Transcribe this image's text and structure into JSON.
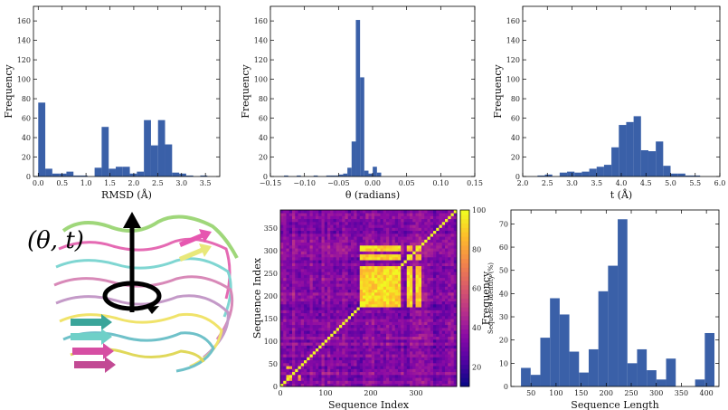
{
  "colors": {
    "bar": "#3a60a8"
  },
  "illustration": {
    "label": "(θ, t)",
    "description_icon": "protein-helix-icon"
  },
  "chart_data": [
    {
      "id": "rmsd",
      "type": "bar",
      "xlabel": "RMSD (Å)",
      "ylabel": "Frequency",
      "xlim": [
        -0.1,
        3.8
      ],
      "ylim": [
        0,
        175
      ],
      "xticks": [
        0.0,
        0.5,
        1.0,
        1.5,
        2.0,
        2.5,
        3.0,
        3.5
      ],
      "xtick_labels": [
        "0.0",
        "0.5",
        "1.0",
        "1.5",
        "2.0",
        "2.5",
        "3.0",
        "3.5"
      ],
      "yticks": [
        0,
        20,
        40,
        60,
        80,
        100,
        120,
        140,
        160
      ],
      "bin_width": 0.1475,
      "bin_starts": [
        0.0,
        0.1475,
        0.295,
        0.4425,
        0.59,
        0.7375,
        0.885,
        1.0325,
        1.18,
        1.3275,
        1.475,
        1.6225,
        1.77,
        1.9175,
        2.065,
        2.2125,
        2.36,
        2.5075,
        2.655,
        2.8025,
        2.95,
        3.0975,
        3.245,
        3.3925,
        3.54
      ],
      "values": [
        76,
        8,
        3,
        3,
        5,
        1,
        1,
        0,
        9,
        51,
        8,
        10,
        10,
        3,
        5,
        58,
        32,
        58,
        33,
        4,
        3,
        1,
        0,
        1,
        0
      ]
    },
    {
      "id": "theta",
      "type": "bar",
      "xlabel": "θ (radians)",
      "ylabel": "Frequency",
      "xlim": [
        -0.15,
        0.15
      ],
      "ylim": [
        0,
        175
      ],
      "xticks": [
        -0.15,
        -0.1,
        -0.05,
        0.0,
        0.05,
        0.1,
        0.15
      ],
      "xtick_labels": [
        "−0.15",
        "−0.10",
        "−0.05",
        "0.00",
        "0.05",
        "0.10",
        "0.15"
      ],
      "yticks": [
        0,
        20,
        40,
        60,
        80,
        100,
        120,
        140,
        160
      ],
      "bin_width": 0.0062,
      "bin_starts": [
        -0.13,
        -0.1238,
        -0.1176,
        -0.1114,
        -0.1052,
        -0.099,
        -0.0928,
        -0.0866,
        -0.0804,
        -0.0742,
        -0.068,
        -0.0618,
        -0.0556,
        -0.0494,
        -0.0432,
        -0.037,
        -0.0308,
        -0.0246,
        -0.0184,
        -0.0122,
        -0.006,
        0.0002,
        0.0064,
        0.0126,
        0.0188
      ],
      "values": [
        1,
        0,
        0,
        1,
        0,
        0,
        0,
        1,
        0,
        0,
        1,
        1,
        1,
        2,
        3,
        9,
        36,
        161,
        102,
        6,
        3,
        10,
        4,
        0,
        0
      ]
    },
    {
      "id": "t",
      "type": "bar",
      "xlabel": "t (Å)",
      "ylabel": "Frequency",
      "xlim": [
        2.0,
        6.0
      ],
      "ylim": [
        0,
        175
      ],
      "xticks": [
        2.0,
        2.5,
        3.0,
        3.5,
        4.0,
        4.5,
        5.0,
        5.5,
        6.0
      ],
      "xtick_labels": [
        "2.0",
        "2.5",
        "3.0",
        "3.5",
        "4.0",
        "4.5",
        "5.0",
        "5.5",
        "6.0"
      ],
      "yticks": [
        0,
        20,
        40,
        60,
        80,
        100,
        120,
        140,
        160
      ],
      "bin_width": 0.15,
      "bin_starts": [
        2.3,
        2.45,
        2.6,
        2.75,
        2.9,
        3.05,
        3.2,
        3.35,
        3.5,
        3.65,
        3.8,
        3.95,
        4.1,
        4.25,
        4.4,
        4.55,
        4.7,
        4.85,
        5.0,
        5.15,
        5.3,
        5.45
      ],
      "values": [
        1,
        2,
        0,
        4,
        5,
        4,
        5,
        8,
        10,
        12,
        30,
        53,
        56,
        62,
        27,
        26,
        36,
        11,
        3,
        3,
        1,
        1
      ]
    },
    {
      "id": "seq-identity",
      "type": "heatmap",
      "xlabel": "Sequence Index",
      "ylabel": "Sequence Index",
      "n": 390,
      "xticks": [
        0,
        100,
        200,
        300
      ],
      "yticks": [
        0,
        50,
        100,
        150,
        200,
        250,
        300,
        350
      ],
      "colorbar_label": "Sequence Identity (%)",
      "colorbar_ticks": [
        20,
        40,
        60,
        80,
        100
      ],
      "colorbar_range": [
        10,
        100
      ]
    },
    {
      "id": "seq-length",
      "type": "bar",
      "xlabel": "Sequence Length",
      "ylabel": "Frequency",
      "xlim": [
        10,
        425
      ],
      "ylim": [
        0,
        76
      ],
      "xticks": [
        50,
        100,
        150,
        200,
        250,
        300,
        350,
        400
      ],
      "xtick_labels": [
        "50",
        "100",
        "150",
        "200",
        "250",
        "300",
        "350",
        "400"
      ],
      "yticks": [
        0,
        10,
        20,
        30,
        40,
        50,
        60,
        70
      ],
      "bin_width": 19.3,
      "bin_starts": [
        30,
        49.3,
        68.6,
        87.9,
        107.2,
        126.5,
        145.8,
        165.1,
        184.4,
        203.7,
        223,
        242.3,
        261.6,
        280.9,
        300.2,
        319.5,
        338.8,
        358.1,
        377.4,
        396.7
      ],
      "values": [
        8,
        5,
        21,
        38,
        31,
        15,
        6,
        16,
        41,
        52,
        72,
        10,
        16,
        7,
        3,
        12,
        0,
        0,
        3,
        23
      ]
    }
  ]
}
